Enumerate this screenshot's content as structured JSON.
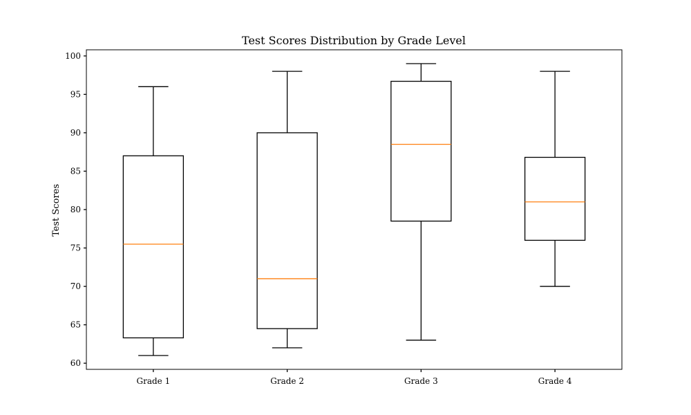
{
  "chart_data": {
    "type": "box",
    "title": "Test Scores Distribution by Grade Level",
    "xlabel": "",
    "ylabel": "Test Scores",
    "categories": [
      "Grade 1",
      "Grade 2",
      "Grade 3",
      "Grade 4"
    ],
    "boxes": [
      {
        "category": "Grade 1",
        "whisker_low": 61,
        "q1": 63.3,
        "median": 75.5,
        "q3": 87,
        "whisker_high": 96
      },
      {
        "category": "Grade 2",
        "whisker_low": 62,
        "q1": 64.5,
        "median": 71,
        "q3": 90,
        "whisker_high": 98
      },
      {
        "category": "Grade 3",
        "whisker_low": 63,
        "q1": 78.5,
        "median": 88.5,
        "q3": 96.7,
        "whisker_high": 99
      },
      {
        "category": "Grade 4",
        "whisker_low": 70,
        "q1": 76,
        "median": 81,
        "q3": 86.8,
        "whisker_high": 98
      }
    ],
    "ylim": [
      59.2,
      100.8
    ],
    "yticks": [
      60,
      65,
      70,
      75,
      80,
      85,
      90,
      95,
      100
    ],
    "grid": false,
    "colors": {
      "box": "#000000",
      "median": "#ff7f0e",
      "axes": "#000000"
    }
  }
}
